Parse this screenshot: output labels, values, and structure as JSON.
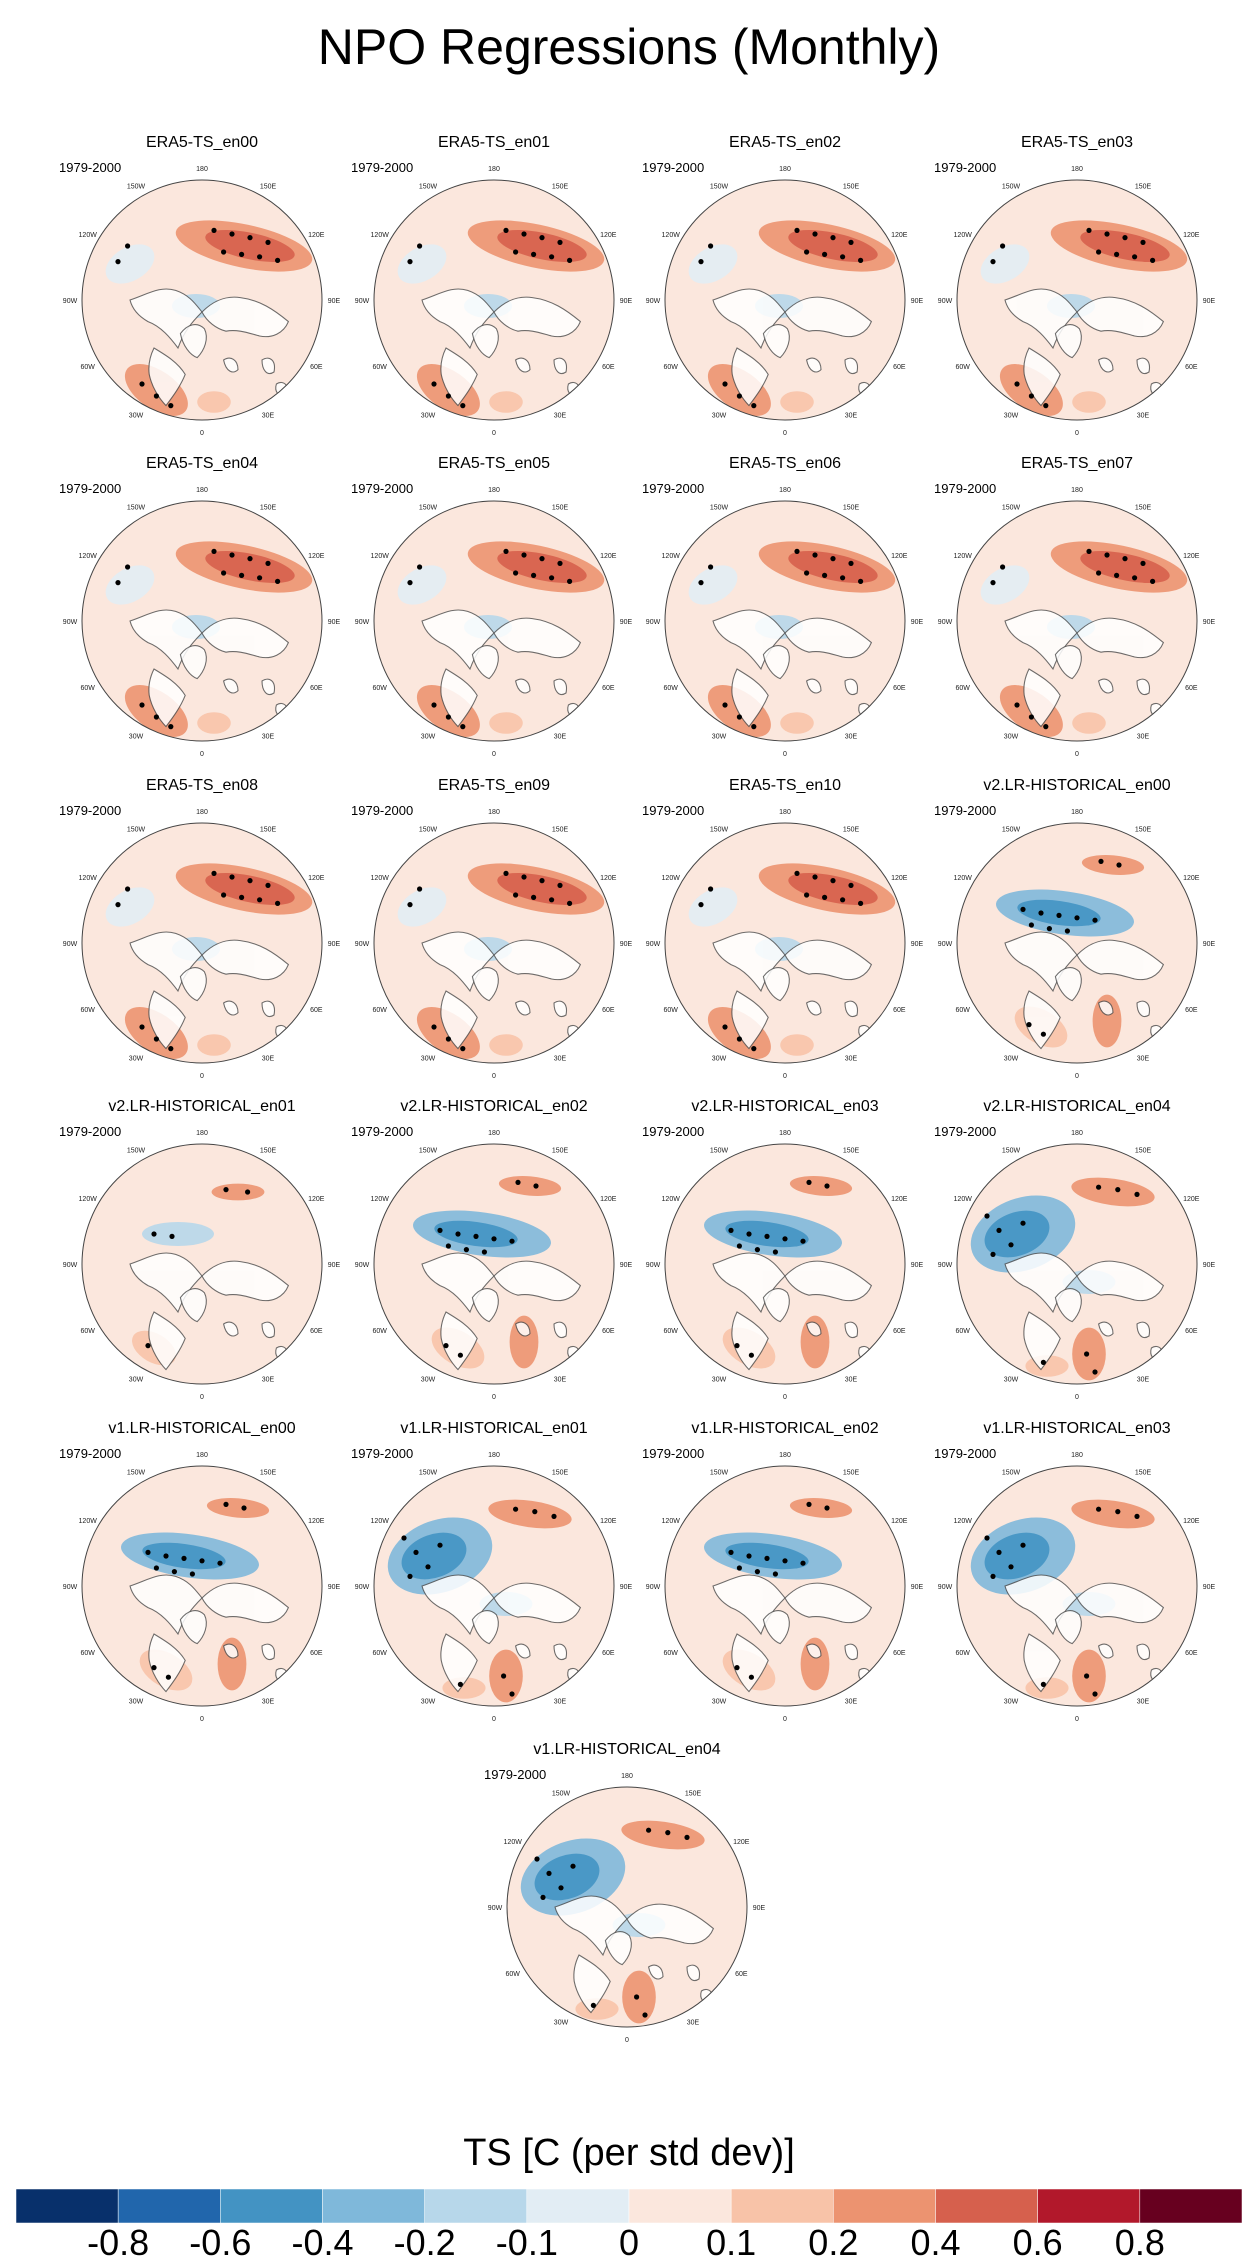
{
  "title": "NPO Regressions (Monthly)",
  "colorbar": {
    "title": "TS [C (per std dev)]",
    "colors": [
      "#08306b",
      "#2166ac",
      "#4393c3",
      "#7fb8da",
      "#b7d7ea",
      "#e2edf4",
      "#fbe7dd",
      "#f8c3a8",
      "#ec9370",
      "#d6604d",
      "#b2182b",
      "#67001f"
    ],
    "ticks": [
      "-0.8",
      "-0.6",
      "-0.4",
      "-0.2",
      "-0.1",
      "0",
      "0.1",
      "0.2",
      "0.4",
      "0.6",
      "0.8"
    ]
  },
  "longitude_labels": [
    "180",
    "150E",
    "120E",
    "90E",
    "60E",
    "30E",
    "0",
    "30W",
    "60W",
    "90W",
    "120W",
    "150W"
  ],
  "panels": [
    {
      "title": "ERA5-TS_en00",
      "period": "1979-2000",
      "pattern": "era"
    },
    {
      "title": "ERA5-TS_en01",
      "period": "1979-2000",
      "pattern": "era"
    },
    {
      "title": "ERA5-TS_en02",
      "period": "1979-2000",
      "pattern": "era"
    },
    {
      "title": "ERA5-TS_en03",
      "period": "1979-2000",
      "pattern": "era"
    },
    {
      "title": "ERA5-TS_en04",
      "period": "1979-2000",
      "pattern": "era"
    },
    {
      "title": "ERA5-TS_en05",
      "period": "1979-2000",
      "pattern": "era"
    },
    {
      "title": "ERA5-TS_en06",
      "period": "1979-2000",
      "pattern": "era"
    },
    {
      "title": "ERA5-TS_en07",
      "period": "1979-2000",
      "pattern": "era"
    },
    {
      "title": "ERA5-TS_en08",
      "period": "1979-2000",
      "pattern": "era"
    },
    {
      "title": "ERA5-TS_en09",
      "period": "1979-2000",
      "pattern": "era"
    },
    {
      "title": "ERA5-TS_en10",
      "period": "1979-2000",
      "pattern": "era"
    },
    {
      "title": "v2.LR-HISTORICAL_en00",
      "period": "1979-2000",
      "pattern": "blue"
    },
    {
      "title": "v2.LR-HISTORICAL_en01",
      "period": "1979-2000",
      "pattern": "weak"
    },
    {
      "title": "v2.LR-HISTORICAL_en02",
      "period": "1979-2000",
      "pattern": "blue"
    },
    {
      "title": "v2.LR-HISTORICAL_en03",
      "period": "1979-2000",
      "pattern": "blue"
    },
    {
      "title": "v2.LR-HISTORICAL_en04",
      "period": "1979-2000",
      "pattern": "mixed"
    },
    {
      "title": "v1.LR-HISTORICAL_en00",
      "period": "1979-2000",
      "pattern": "blue"
    },
    {
      "title": "v1.LR-HISTORICAL_en01",
      "period": "1979-2000",
      "pattern": "mixed"
    },
    {
      "title": "v1.LR-HISTORICAL_en02",
      "period": "1979-2000",
      "pattern": "blue"
    },
    {
      "title": "v1.LR-HISTORICAL_en03",
      "period": "1979-2000",
      "pattern": "mixed"
    },
    {
      "title": "v1.LR-HISTORICAL_en04",
      "period": "1979-2000",
      "pattern": "mixed"
    }
  ]
}
